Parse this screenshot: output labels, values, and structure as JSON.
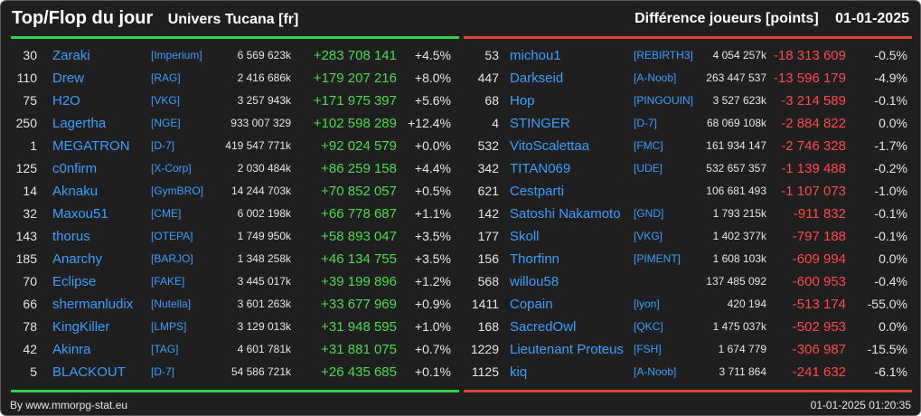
{
  "header": {
    "title": "Top/Flop du jour",
    "universe": "Univers Tucana [fr]",
    "metric": "Différence joueurs [points]",
    "date": "01-01-2025"
  },
  "colors": {
    "top_accent": "#2fd44a",
    "flop_accent": "#e2413a",
    "positive": "#4cdc4c",
    "negative": "#ff4a4a",
    "link": "#3aa0ff",
    "background": "#1f1f1f"
  },
  "top": [
    {
      "rank": "30",
      "name": "Zaraki",
      "alliance": "[Imperium]",
      "points": "6 569 623k",
      "diff": "+283 708 141",
      "pct": "+4.5%"
    },
    {
      "rank": "110",
      "name": "Drew",
      "alliance": "[RAG]",
      "points": "2 416 686k",
      "diff": "+179 207 216",
      "pct": "+8.0%"
    },
    {
      "rank": "75",
      "name": "H2O",
      "alliance": "[VKG]",
      "points": "3 257 943k",
      "diff": "+171 975 397",
      "pct": "+5.6%"
    },
    {
      "rank": "250",
      "name": "Lagertha",
      "alliance": "[NGE]",
      "points": "933 007 329",
      "diff": "+102 598 289",
      "pct": "+12.4%"
    },
    {
      "rank": "1",
      "name": "MEGATRON",
      "alliance": "[D-7]",
      "points": "419 547 771k",
      "diff": "+92 024 579",
      "pct": "+0.0%"
    },
    {
      "rank": "125",
      "name": "c0nfirm",
      "alliance": "[X-Corp]",
      "points": "2 030 484k",
      "diff": "+86 259 158",
      "pct": "+4.4%"
    },
    {
      "rank": "14",
      "name": "Aknaku",
      "alliance": "[GymBRO]",
      "points": "14 244 703k",
      "diff": "+70 852 057",
      "pct": "+0.5%"
    },
    {
      "rank": "32",
      "name": "Maxou51",
      "alliance": "[CME]",
      "points": "6 002 198k",
      "diff": "+66 778 687",
      "pct": "+1.1%"
    },
    {
      "rank": "143",
      "name": "thorus",
      "alliance": "[OTEPA]",
      "points": "1 749 950k",
      "diff": "+58 893 047",
      "pct": "+3.5%"
    },
    {
      "rank": "185",
      "name": "Anarchy",
      "alliance": "[BARJO]",
      "points": "1 348 258k",
      "diff": "+46 134 755",
      "pct": "+3.5%"
    },
    {
      "rank": "70",
      "name": "Eclipse",
      "alliance": "[FAKE]",
      "points": "3 445 017k",
      "diff": "+39 199 896",
      "pct": "+1.2%"
    },
    {
      "rank": "66",
      "name": "shermanludix",
      "alliance": "[Nutella]",
      "points": "3 601 263k",
      "diff": "+33 677 969",
      "pct": "+0.9%"
    },
    {
      "rank": "78",
      "name": "KingKiller",
      "alliance": "[LMPS]",
      "points": "3 129 013k",
      "diff": "+31 948 595",
      "pct": "+1.0%"
    },
    {
      "rank": "42",
      "name": "Akinra",
      "alliance": "[TAG]",
      "points": "4 601 781k",
      "diff": "+31 881 075",
      "pct": "+0.7%"
    },
    {
      "rank": "5",
      "name": "BLACKOUT",
      "alliance": "[D-7]",
      "points": "54 586 721k",
      "diff": "+26 435 685",
      "pct": "+0.1%"
    }
  ],
  "flop": [
    {
      "rank": "53",
      "name": "michou1",
      "alliance": "[REBIRTH3]",
      "points": "4 054 257k",
      "diff": "-18 313 609",
      "pct": "-0.5%"
    },
    {
      "rank": "447",
      "name": "Darkseid",
      "alliance": "[A-Noob]",
      "points": "263 447 537",
      "diff": "-13 596 179",
      "pct": "-4.9%"
    },
    {
      "rank": "68",
      "name": "Hop",
      "alliance": "[PINGOUIN]",
      "points": "3 527 623k",
      "diff": "-3 214 589",
      "pct": "-0.1%"
    },
    {
      "rank": "4",
      "name": "STINGER",
      "alliance": "[D-7]",
      "points": "68 069 108k",
      "diff": "-2 884 822",
      "pct": "0.0%"
    },
    {
      "rank": "532",
      "name": "VitoScalettaa",
      "alliance": "[FMC]",
      "points": "161 934 147",
      "diff": "-2 746 328",
      "pct": "-1.7%"
    },
    {
      "rank": "342",
      "name": "TITAN069",
      "alliance": "[UDE]",
      "points": "532 657 357",
      "diff": "-1 139 488",
      "pct": "-0.2%"
    },
    {
      "rank": "621",
      "name": "Cestparti",
      "alliance": "",
      "points": "106 681 493",
      "diff": "-1 107 073",
      "pct": "-1.0%"
    },
    {
      "rank": "142",
      "name": "Satoshi Nakamoto",
      "alliance": "[GND]",
      "points": "1 793 215k",
      "diff": "-911 832",
      "pct": "-0.1%"
    },
    {
      "rank": "177",
      "name": "Skoll",
      "alliance": "[VKG]",
      "points": "1 402 377k",
      "diff": "-797 188",
      "pct": "-0.1%"
    },
    {
      "rank": "156",
      "name": "Thorfinn",
      "alliance": "[PIMENT]",
      "points": "1 608 103k",
      "diff": "-609 994",
      "pct": "0.0%"
    },
    {
      "rank": "568",
      "name": "willou58",
      "alliance": "",
      "points": "137 485 092",
      "diff": "-600 953",
      "pct": "-0.4%"
    },
    {
      "rank": "1411",
      "name": "Copain",
      "alliance": "[lyon]",
      "points": "420 194",
      "diff": "-513 174",
      "pct": "-55.0%"
    },
    {
      "rank": "168",
      "name": "SacredOwl",
      "alliance": "[QKC]",
      "points": "1 475 037k",
      "diff": "-502 953",
      "pct": "0.0%"
    },
    {
      "rank": "1229",
      "name": "Lieutenant Proteus",
      "alliance": "[FSH]",
      "points": "1 674 779",
      "diff": "-306 987",
      "pct": "-15.5%"
    },
    {
      "rank": "1125",
      "name": "kiq",
      "alliance": "[A-Noob]",
      "points": "3 711 864",
      "diff": "-241 632",
      "pct": "-6.1%"
    }
  ],
  "footer": {
    "credit": "By www.mmorpg-stat.eu",
    "timestamp": "01-01-2025 01:20:35"
  }
}
